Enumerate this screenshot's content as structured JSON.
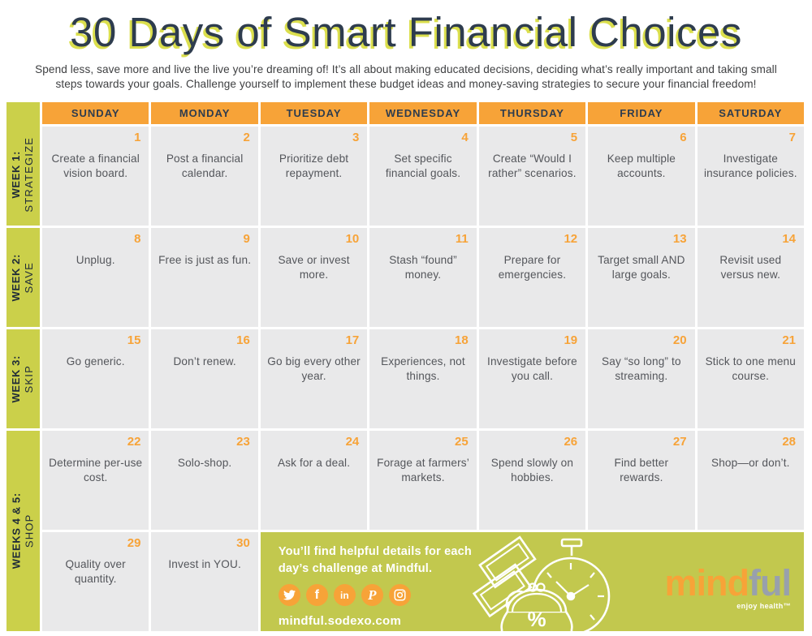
{
  "page": {
    "title": "30 Days of Smart Financial Choices",
    "subtitle_lines": [
      "Spend less, save more and live the live you’re dreaming of! It’s all about making educated decisions, deciding what’s really important and taking small",
      "steps towards your goals. Challenge yourself to implement these budget ideas and money-saving strategies to secure your financial freedom!"
    ]
  },
  "calendar": {
    "day_headers": [
      "SUNDAY",
      "MONDAY",
      "TUESDAY",
      "WEDNESDAY",
      "THURSDAY",
      "FRIDAY",
      "SATURDAY"
    ],
    "weeks": [
      {
        "week_label": "WEEK 1:",
        "theme": "STRATEGIZE"
      },
      {
        "week_label": "WEEK 2:",
        "theme": "SAVE"
      },
      {
        "week_label": "WEEK 3:",
        "theme": "SKIP"
      },
      {
        "week_label": "WEEKS 4 & 5:",
        "theme": "SHOP"
      }
    ],
    "cells": [
      {
        "day": "1",
        "row": 1,
        "col": 0,
        "text": "Create a financial vision board."
      },
      {
        "day": "2",
        "row": 1,
        "col": 1,
        "text": "Post a financial calendar."
      },
      {
        "day": "3",
        "row": 1,
        "col": 2,
        "text": "Prioritize debt repayment."
      },
      {
        "day": "4",
        "row": 1,
        "col": 3,
        "text": "Set specific financial goals."
      },
      {
        "day": "5",
        "row": 1,
        "col": 4,
        "text": "Create “Would I rather” scenarios."
      },
      {
        "day": "6",
        "row": 1,
        "col": 5,
        "text": "Keep multiple accounts."
      },
      {
        "day": "7",
        "row": 1,
        "col": 6,
        "text": "Investigate insurance policies."
      },
      {
        "day": "8",
        "row": 2,
        "col": 0,
        "text": "Unplug."
      },
      {
        "day": "9",
        "row": 2,
        "col": 1,
        "text": "Free is just as fun."
      },
      {
        "day": "10",
        "row": 2,
        "col": 2,
        "text": "Save or invest more."
      },
      {
        "day": "11",
        "row": 2,
        "col": 3,
        "text": "Stash “found” money."
      },
      {
        "day": "12",
        "row": 2,
        "col": 4,
        "text": "Prepare for emergencies."
      },
      {
        "day": "13",
        "row": 2,
        "col": 5,
        "text": "Target small AND large goals."
      },
      {
        "day": "14",
        "row": 2,
        "col": 6,
        "text": "Revisit used versus new."
      },
      {
        "day": "15",
        "row": 3,
        "col": 0,
        "text": "Go generic."
      },
      {
        "day": "16",
        "row": 3,
        "col": 1,
        "text": "Don’t renew."
      },
      {
        "day": "17",
        "row": 3,
        "col": 2,
        "text": "Go big every other year."
      },
      {
        "day": "18",
        "row": 3,
        "col": 3,
        "text": "Experiences, not things."
      },
      {
        "day": "19",
        "row": 3,
        "col": 4,
        "text": "Investigate before you call."
      },
      {
        "day": "20",
        "row": 3,
        "col": 5,
        "text": "Say “so long” to streaming."
      },
      {
        "day": "21",
        "row": 3,
        "col": 6,
        "text": "Stick to one menu course."
      },
      {
        "day": "22",
        "row": 4,
        "col": 0,
        "text": "Determine per-use cost."
      },
      {
        "day": "23",
        "row": 4,
        "col": 1,
        "text": "Solo-shop."
      },
      {
        "day": "24",
        "row": 4,
        "col": 2,
        "text": "Ask for a deal."
      },
      {
        "day": "25",
        "row": 4,
        "col": 3,
        "text": "Forage at farmers’ markets."
      },
      {
        "day": "26",
        "row": 4,
        "col": 4,
        "text": "Spend slowly on hobbies."
      },
      {
        "day": "27",
        "row": 4,
        "col": 5,
        "text": "Find better rewards."
      },
      {
        "day": "28",
        "row": 4,
        "col": 6,
        "text": "Shop—or don’t."
      },
      {
        "day": "29",
        "row": 5,
        "col": 0,
        "text": "Quality over quantity."
      },
      {
        "day": "30",
        "row": 5,
        "col": 1,
        "text": "Invest in YOU."
      }
    ]
  },
  "footer": {
    "message_lines": [
      "You’ll find helpful details for each",
      "day’s challenge at Mindful."
    ],
    "url": "mindful.sodexo.com",
    "social": [
      {
        "name": "twitter"
      },
      {
        "name": "facebook",
        "glyph": "f"
      },
      {
        "name": "linkedin",
        "glyph": "in"
      },
      {
        "name": "pinterest",
        "glyph": "P"
      },
      {
        "name": "instagram"
      }
    ],
    "purse_symbol": "%",
    "logo": {
      "part1": "mind",
      "part2": "ful",
      "tagline": "enjoy health™"
    }
  },
  "colors": {
    "orange": "#F7A338",
    "navy": "#2E3C4E",
    "lime": "#CBD04A",
    "lime_footer": "#C2C84E",
    "cell_gray": "#E9E9EA",
    "title_shadow": "#DBDF4D",
    "cell_text": "#54565B",
    "logo_gray": "#98A0AC"
  }
}
